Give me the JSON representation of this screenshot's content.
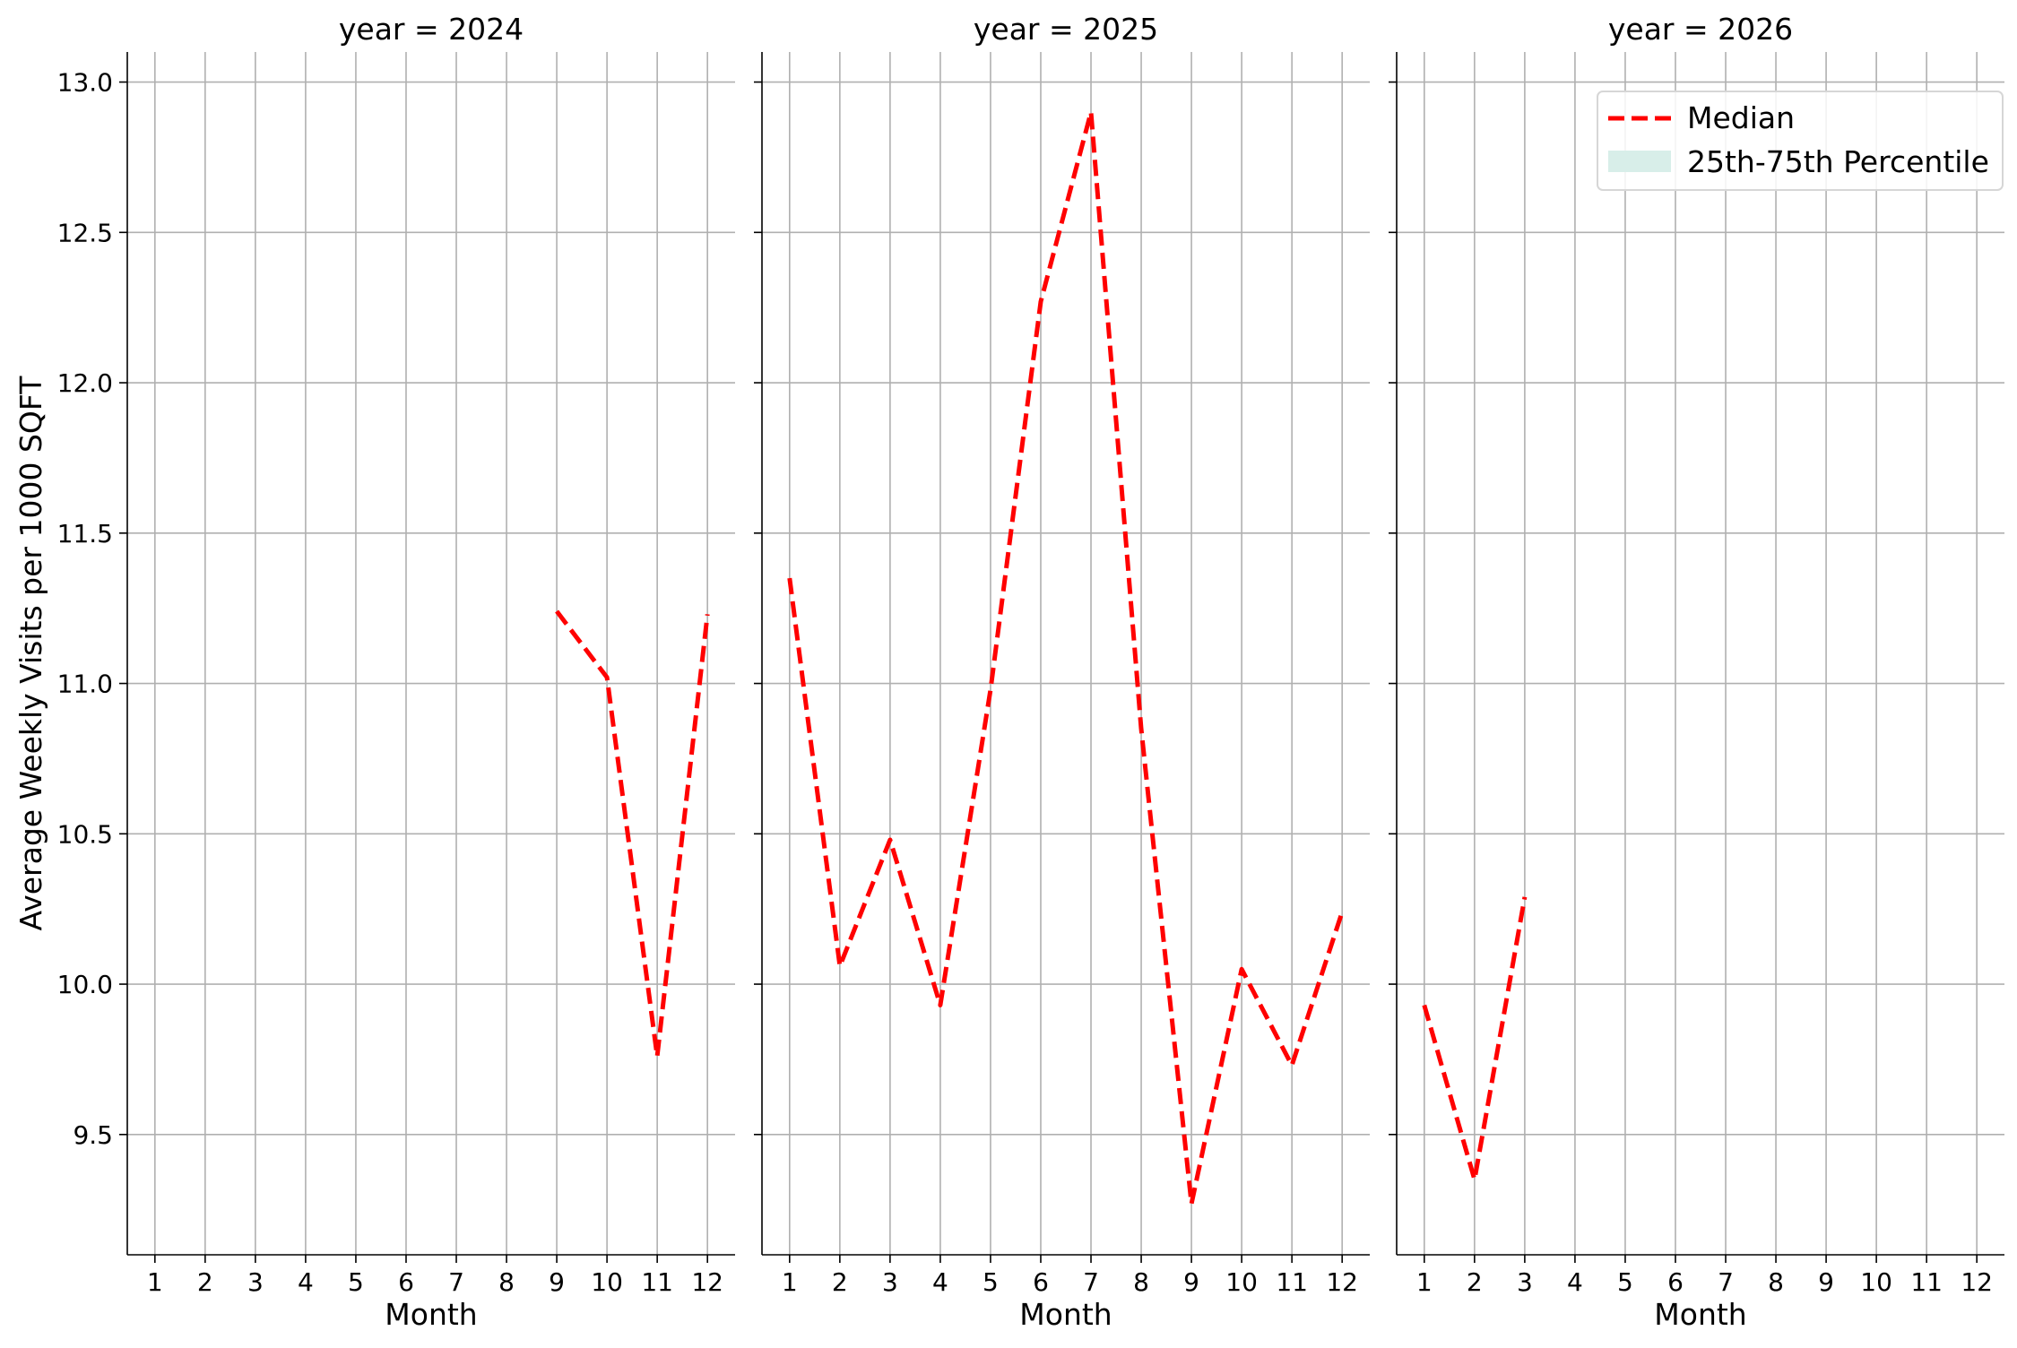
{
  "chart_data": {
    "type": "line",
    "ylabel": "Average Weekly Visits per 1000 SQFT",
    "ylim": [
      9.1,
      13.1
    ],
    "yticks": [
      9.5,
      10.0,
      10.5,
      11.0,
      11.5,
      12.0,
      12.5,
      13.0
    ],
    "ytick_labels": [
      "9.5",
      "10.0",
      "10.5",
      "11.0",
      "11.5",
      "12.0",
      "12.5",
      "13.0"
    ],
    "xlabel": "Month",
    "xticks": [
      1,
      2,
      3,
      4,
      5,
      6,
      7,
      8,
      9,
      10,
      11,
      12
    ],
    "xtick_labels": [
      "1",
      "2",
      "3",
      "4",
      "5",
      "6",
      "7",
      "8",
      "9",
      "10",
      "11",
      "12"
    ],
    "xlim": [
      0.45,
      12.55
    ],
    "grid": true,
    "legend": {
      "placement": "top-right",
      "entries": [
        {
          "label": "Median",
          "style": "dashed-line",
          "color": "#ff0000"
        },
        {
          "label": "25th-75th Percentile",
          "style": "band",
          "color": "#d8eee9"
        }
      ]
    },
    "panels": [
      {
        "title": "year = 2024",
        "series": [
          {
            "name": "Median",
            "x": [
              9,
              10,
              11,
              12
            ],
            "values": [
              11.24,
              11.02,
              9.76,
              11.23
            ]
          }
        ]
      },
      {
        "title": "year = 2025",
        "series": [
          {
            "name": "Median",
            "x": [
              1,
              2,
              3,
              4,
              5,
              6,
              7,
              8,
              9,
              10,
              11,
              12
            ],
            "values": [
              11.35,
              10.06,
              10.48,
              9.93,
              10.98,
              12.27,
              12.9,
              10.85,
              9.27,
              10.05,
              9.73,
              10.24
            ]
          }
        ]
      },
      {
        "title": "year = 2026",
        "series": [
          {
            "name": "Median",
            "x": [
              1,
              2,
              3
            ],
            "values": [
              9.93,
              9.35,
              10.29
            ]
          }
        ]
      }
    ]
  }
}
